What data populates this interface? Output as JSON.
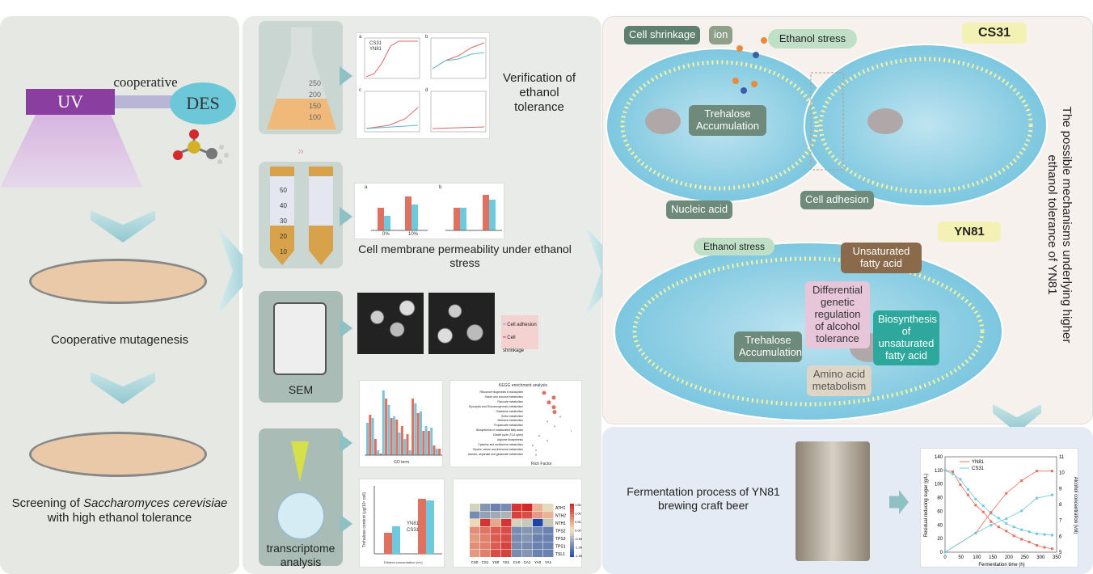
{
  "left": {
    "uv": "UV",
    "des": "DES",
    "cooperative": "cooperative",
    "step1": "Cooperative mutagenesis",
    "step2_prefix": "Screening of ",
    "step2_species": "Saccharomyces cerevisiae",
    "step2_suffix": "with  high ethanol tolerance"
  },
  "middle": {
    "flask_marks": [
      "250",
      "200",
      "150",
      "100"
    ],
    "tube_marks": [
      "50",
      "40",
      "30",
      "20",
      "10"
    ],
    "sem_label": "SEM",
    "transcriptome_label": "transcriptome analysis",
    "verification_label": "Verification of ethanol tolerance",
    "permeability_label": "Cell membrane permeability under ethanol stress",
    "growth_panels": [
      "a",
      "b",
      "c",
      "d"
    ],
    "growth_legend": [
      "CS31",
      "YN81"
    ],
    "bar_panels": [
      "a",
      "b"
    ],
    "bar_categories": [
      "0%",
      "10%"
    ],
    "sem_legend": [
      "Cell adhesion",
      "Cell shrinkage"
    ],
    "kegg_title": "KEGG enrichment analysis",
    "kegg_pathways": [
      "Ribosome biogenesis in eukaryotes",
      "Starch and sucrose metabolism",
      "Pyruvate metabolism",
      "Glycolysis and Gluconeogenesis metabolism",
      "Galactose metabolism",
      "Sulfur metabolism",
      "Methane metabolism",
      "Propanoate metabolism",
      "Biosynthesis of unsaturated fatty acids",
      "Citrate cycle (TCA cycle)",
      "Arginine biosynthesis",
      "Cysteine and methionine metabolism",
      "Glycine, serine and threonine metabolism",
      "Alanine, aspartate and glutamate metabolism"
    ],
    "kegg_xlabel": "Rich Factor",
    "go_xlabel": "GO term",
    "trehalose_ylabel": "Trehalose content (μg/10⁸ cell)",
    "trehalose_xlabel": "Ethanol concentration (v/v)",
    "trehalose_legend": [
      "YN81",
      "CS31"
    ],
    "heatmap_rows": [
      "ATH1",
      "NTH2",
      "NTH1",
      "TPS2",
      "TPS3",
      "TPS1",
      "TSL1"
    ],
    "heatmap_cols": [
      "CS0",
      "CS1",
      "YS0",
      "YS1",
      "CA0",
      "CA1",
      "YA0",
      "YA1"
    ],
    "heatmap_scale": [
      "1.50",
      "1.00",
      "0.50",
      "0.00",
      "-0.50",
      "-1.00",
      "-1.50"
    ],
    "heatmap_values": [
      [
        -0.2,
        -0.8,
        -1.0,
        -0.9,
        1.4,
        1.5,
        0.4,
        -0.1
      ],
      [
        -0.9,
        -0.7,
        -0.6,
        -0.5,
        1.3,
        1.2,
        0.6,
        0.4
      ],
      [
        0.1,
        1.4,
        0.5,
        1.4,
        -0.2,
        -0.3,
        -1.6,
        -0.3
      ],
      [
        0.7,
        0.9,
        1.1,
        1.2,
        -0.9,
        -0.8,
        -0.9,
        -1.0
      ],
      [
        0.6,
        0.8,
        1.1,
        1.2,
        -0.9,
        -0.8,
        -1.0,
        -1.0
      ],
      [
        0.7,
        0.8,
        1.1,
        1.3,
        -0.9,
        -0.9,
        -1.0,
        -1.0
      ],
      [
        0.6,
        0.8,
        1.2,
        1.3,
        -0.9,
        -0.8,
        -1.0,
        -1.0
      ]
    ]
  },
  "mechanism": {
    "side_title": "The possible mechanisms underlying higher ethanol tolerance of YN81",
    "cs31": "CS31",
    "yn81": "YN81",
    "cell_shrinkage": "Cell shrinkage",
    "ion": "ion",
    "ethanol_stress_top": "Ethanol stress",
    "trehalose_top": "Trehalose Accumulation",
    "nucleic_acid": "Nucleic acid",
    "cell_adhesion": "Cell adhesion",
    "ethanol_stress_bottom": "Ethanol stress",
    "unsaturated_fatty_acid": "Unsaturated fatty acid",
    "trehalose_bottom": "Trehalose Accumulation",
    "differential": "Differential genetic regulation of alcohol tolerance",
    "biosynthesis": "Biosynthesis of unsaturated fatty acid",
    "amino_acid": "Amino acid metabolism"
  },
  "fermentation": {
    "label": "Fermentation process of YN81 brewing craft beer"
  },
  "chart_data": {
    "type": "line",
    "xlabel": "Fermentation time (h)",
    "ylabel": "Residual reducing sugar (g/L)",
    "y2label": "Alcohol concentration (vol)",
    "xlim": [
      0,
      350
    ],
    "ylim": [
      0,
      140
    ],
    "y2lim": [
      5,
      11
    ],
    "xticks": [
      0,
      50,
      100,
      150,
      200,
      250,
      300,
      350
    ],
    "yticks": [
      0,
      20,
      40,
      60,
      80,
      100,
      120,
      140
    ],
    "y2ticks": [
      5,
      6,
      7,
      8,
      9,
      10,
      11
    ],
    "legend": "top-left",
    "colors": {
      "YN81": "#e8705f",
      "CS31": "#6fc9dc"
    },
    "series": [
      {
        "name": "YN81",
        "axis": "left",
        "x": [
          0,
          24,
          48,
          72,
          96,
          120,
          144,
          168,
          192,
          216,
          240,
          264,
          288,
          312,
          336
        ],
        "y": [
          120,
          118,
          99,
          84,
          69,
          59,
          45,
          37,
          31,
          24,
          19,
          15,
          10,
          7,
          5
        ]
      },
      {
        "name": "CS31",
        "axis": "left",
        "x": [
          0,
          24,
          48,
          72,
          96,
          120,
          144,
          168,
          192,
          216,
          240,
          264,
          288,
          312,
          336
        ],
        "y": [
          120,
          115,
          107,
          92,
          78,
          68,
          57,
          50,
          42,
          37,
          33,
          30,
          27,
          26,
          25
        ]
      },
      {
        "name": "YN81",
        "axis": "right",
        "x": [
          0,
          96,
          144,
          192,
          240,
          288,
          336
        ],
        "y": [
          5,
          6.2,
          7.5,
          8.7,
          9.5,
          10.1,
          10.1
        ]
      },
      {
        "name": "CS31",
        "axis": "right",
        "x": [
          0,
          96,
          144,
          192,
          240,
          288,
          336
        ],
        "y": [
          5,
          6.2,
          6.7,
          7.1,
          7.6,
          8.4,
          8.6
        ]
      }
    ]
  }
}
